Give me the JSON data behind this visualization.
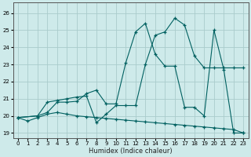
{
  "xlabel": "Humidex (Indice chaleur)",
  "ylabel": "",
  "background_color": "#ceeaea",
  "grid_color": "#aacccc",
  "line_color": "#006060",
  "xlim": [
    -0.5,
    23.5
  ],
  "ylim": [
    18.7,
    26.6
  ],
  "xticks": [
    0,
    1,
    2,
    3,
    4,
    5,
    6,
    7,
    8,
    9,
    10,
    11,
    12,
    13,
    14,
    15,
    16,
    17,
    18,
    19,
    20,
    21,
    22,
    23
  ],
  "yticks": [
    19,
    20,
    21,
    22,
    23,
    24,
    25,
    26
  ],
  "line1_x": [
    0,
    1,
    2,
    3,
    4,
    5,
    6,
    7,
    8,
    9,
    10,
    11,
    12,
    13,
    14,
    15,
    16,
    17,
    18,
    19,
    20,
    21,
    22,
    23
  ],
  "line1_y": [
    19.9,
    19.7,
    19.9,
    20.1,
    20.2,
    20.1,
    20.0,
    19.95,
    19.9,
    19.85,
    19.8,
    19.75,
    19.7,
    19.65,
    19.6,
    19.55,
    19.5,
    19.45,
    19.4,
    19.35,
    19.3,
    19.25,
    19.2,
    19.0
  ],
  "line2_x": [
    0,
    2,
    3,
    4,
    5,
    6,
    7,
    8,
    9,
    10,
    11,
    12,
    13,
    14,
    15,
    16,
    17,
    18,
    19,
    20,
    21,
    22,
    23
  ],
  "line2_y": [
    19.9,
    20.0,
    20.8,
    20.9,
    21.0,
    21.1,
    21.15,
    19.6,
    20.1,
    20.6,
    20.6,
    20.6,
    23.0,
    24.7,
    24.9,
    25.7,
    25.3,
    23.5,
    22.8,
    22.8,
    22.8,
    22.8,
    22.8
  ],
  "line3_x": [
    0,
    2,
    3,
    4,
    5,
    6,
    7,
    8,
    9,
    10,
    11,
    12,
    13,
    14,
    15,
    16,
    17,
    18,
    19,
    20,
    21,
    22,
    23
  ],
  "line3_y": [
    19.9,
    20.0,
    20.2,
    20.8,
    20.8,
    20.85,
    21.3,
    21.5,
    20.7,
    20.7,
    23.1,
    24.9,
    25.4,
    23.6,
    22.9,
    22.9,
    20.5,
    20.5,
    20.0,
    25.0,
    22.7,
    19.0,
    19.0
  ]
}
